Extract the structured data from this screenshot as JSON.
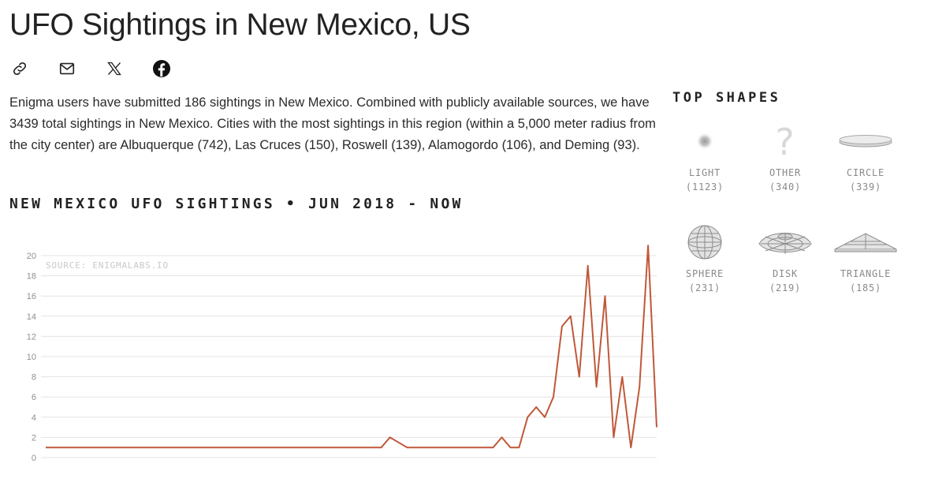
{
  "page": {
    "title": "UFO Sightings in New Mexico, US",
    "intro": "Enigma users have submitted 186 sightings in New Mexico. Combined with publicly available sources, we have 3439 total sightings in New Mexico. Cities with the most sightings in this region (within a 5,000 meter radius from the city center) are Albuquerque (742), Las Cruces (150), Roswell (139), Alamogordo (106), and Deming (93)."
  },
  "share": {
    "icons": [
      "link-icon",
      "mail-icon",
      "x-icon",
      "facebook-icon"
    ]
  },
  "chart_title": "NEW MEXICO UFO SIGHTINGS • JUN 2018 - NOW",
  "chart_data": {
    "type": "line",
    "title": "NEW MEXICO UFO SIGHTINGS • JUN 2018 - NOW",
    "source": "SOURCE: ENIGMALABS.IO",
    "xlabel": "",
    "ylabel": "",
    "ylim": [
      0,
      20
    ],
    "yticks": [
      0,
      2,
      4,
      6,
      8,
      10,
      12,
      14,
      16,
      18,
      20
    ],
    "grid": true,
    "color": "#c0583a",
    "values": [
      1,
      1,
      1,
      1,
      1,
      1,
      1,
      1,
      1,
      1,
      1,
      1,
      1,
      1,
      1,
      1,
      1,
      1,
      1,
      1,
      1,
      1,
      1,
      1,
      1,
      1,
      1,
      1,
      1,
      1,
      1,
      1,
      1,
      1,
      1,
      1,
      1,
      1,
      1,
      1,
      2,
      1.5,
      1,
      1,
      1,
      1,
      1,
      1,
      1,
      1,
      1,
      1,
      1,
      2,
      1,
      1,
      4,
      5,
      4,
      6,
      13,
      14,
      8,
      19,
      7,
      16,
      2,
      8,
      1,
      7,
      21,
      3
    ]
  },
  "top_shapes": {
    "title": "TOP SHAPES",
    "items": [
      {
        "label": "LIGHT",
        "count": "(1123)",
        "icon": "light-icon"
      },
      {
        "label": "OTHER",
        "count": "(340)",
        "icon": "question-icon"
      },
      {
        "label": "CIRCLE",
        "count": "(339)",
        "icon": "circle-icon"
      },
      {
        "label": "SPHERE",
        "count": "(231)",
        "icon": "sphere-icon"
      },
      {
        "label": "DISK",
        "count": "(219)",
        "icon": "disk-icon"
      },
      {
        "label": "TRIANGLE",
        "count": "(185)",
        "icon": "triangle-icon"
      }
    ]
  },
  "colors": {
    "line": "#c0583a",
    "grid": "#e3e3e3",
    "muted": "#8a8a8a"
  }
}
